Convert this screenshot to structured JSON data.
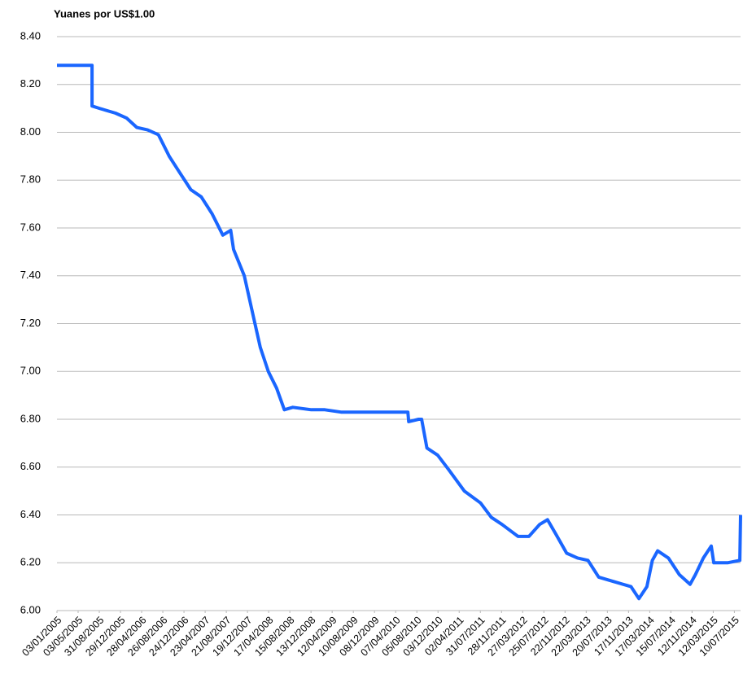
{
  "chart_data": {
    "type": "line",
    "title": "Yuanes por US$1.00",
    "x": [
      "03/01/2005",
      "21/07/2005",
      "21/07/2005",
      "01/09/2005",
      "01/12/2005",
      "01/02/2006",
      "01/04/2006",
      "01/06/2006",
      "01/08/2006",
      "01/10/2006",
      "01/12/2006",
      "01/02/2007",
      "01/04/2007",
      "01/06/2007",
      "01/08/2007",
      "15/09/2007",
      "01/10/2007",
      "01/12/2007",
      "15/01/2008",
      "01/03/2008",
      "15/04/2008",
      "01/06/2008",
      "15/07/2008",
      "01/09/2008",
      "15/12/2008",
      "01/03/2009",
      "01/06/2009",
      "01/10/2009",
      "01/03/2010",
      "15/06/2010",
      "20/06/2010",
      "15/08/2010",
      "01/09/2010",
      "01/10/2010",
      "01/12/2010",
      "01/02/2011",
      "01/05/2011",
      "01/08/2011",
      "01/10/2011",
      "01/12/2011",
      "01/03/2012",
      "01/05/2012",
      "01/07/2012",
      "15/08/2012",
      "01/10/2012",
      "01/12/2012",
      "01/02/2013",
      "01/04/2013",
      "01/06/2013",
      "01/09/2013",
      "01/12/2013",
      "15/01/2014",
      "01/03/2014",
      "01/04/2014",
      "01/05/2014",
      "01/07/2014",
      "01/09/2014",
      "01/11/2014",
      "01/12/2014",
      "15/01/2015",
      "01/03/2015",
      "15/03/2015",
      "01/06/2015",
      "10/08/2015",
      "14/08/2015"
    ],
    "values": [
      8.28,
      8.28,
      8.11,
      8.1,
      8.08,
      8.06,
      8.02,
      8.01,
      7.99,
      7.9,
      7.83,
      7.76,
      7.73,
      7.66,
      7.57,
      7.59,
      7.51,
      7.4,
      7.25,
      7.1,
      7.0,
      6.93,
      6.84,
      6.85,
      6.84,
      6.84,
      6.83,
      6.83,
      6.83,
      6.83,
      6.79,
      6.8,
      6.8,
      6.68,
      6.65,
      6.59,
      6.5,
      6.45,
      6.39,
      6.36,
      6.31,
      6.31,
      6.36,
      6.38,
      6.32,
      6.24,
      6.22,
      6.21,
      6.14,
      6.12,
      6.1,
      6.05,
      6.1,
      6.21,
      6.25,
      6.22,
      6.15,
      6.11,
      6.15,
      6.22,
      6.27,
      6.2,
      6.2,
      6.21,
      6.4
    ],
    "color": "#1a66ff",
    "ylim": [
      6.0,
      8.4
    ],
    "yticks": [
      {
        "value": 6.0,
        "label": "6.00"
      },
      {
        "value": 6.2,
        "label": "6.20"
      },
      {
        "value": 6.4,
        "label": "6.40"
      },
      {
        "value": 6.6,
        "label": "6.60"
      },
      {
        "value": 6.8,
        "label": "6.80"
      },
      {
        "value": 7.0,
        "label": "7.00"
      },
      {
        "value": 7.2,
        "label": "7.20"
      },
      {
        "value": 7.4,
        "label": "7.40"
      },
      {
        "value": 7.6,
        "label": "7.60"
      },
      {
        "value": 7.8,
        "label": "7.80"
      },
      {
        "value": 8.0,
        "label": "8.00"
      },
      {
        "value": 8.2,
        "label": "8.20"
      },
      {
        "value": 8.4,
        "label": "8.40"
      }
    ],
    "xticks": [
      "03/01/2005",
      "03/05/2005",
      "31/08/2005",
      "29/12/2005",
      "28/04/2006",
      "26/08/2006",
      "24/12/2006",
      "23/04/2007",
      "21/08/2007",
      "19/12/2007",
      "17/04/2008",
      "15/08/2008",
      "13/12/2008",
      "12/04/2009",
      "10/08/2009",
      "08/12/2009",
      "07/04/2010",
      "05/08/2010",
      "03/12/2010",
      "02/04/2011",
      "31/07/2011",
      "28/11/2011",
      "27/03/2012",
      "25/07/2012",
      "22/11/2012",
      "22/03/2013",
      "20/07/2013",
      "17/11/2013",
      "17/03/2014",
      "15/07/2014",
      "12/11/2014",
      "12/03/2015",
      "10/07/2015"
    ],
    "grid": true
  }
}
